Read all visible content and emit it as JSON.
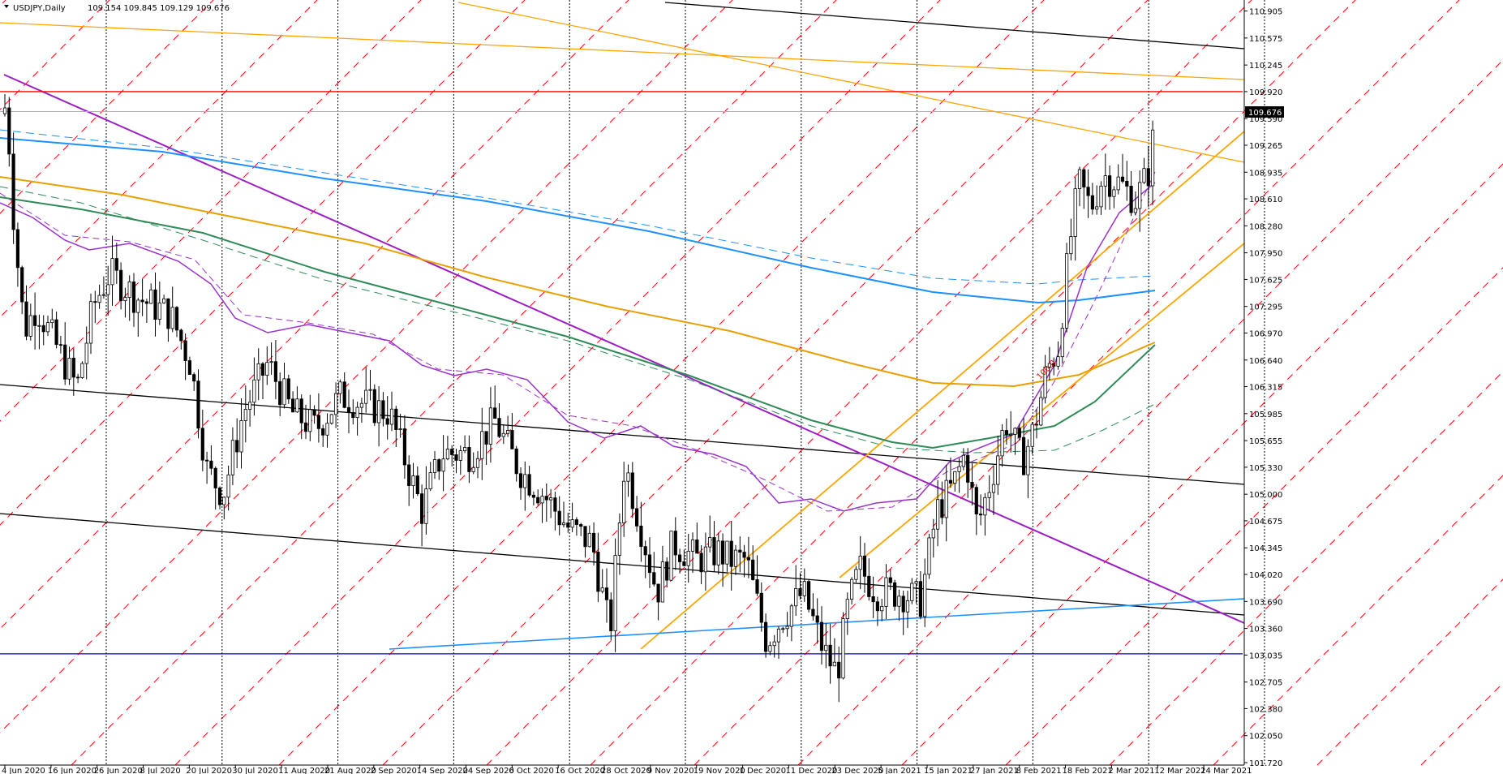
{
  "chart_data": {
    "type": "candlestick",
    "header": {
      "symbol_timeframe": "USDJPY,Daily",
      "ohlc_text": "109.154 109.845 109.129 109.676"
    },
    "price_axis": {
      "min": 101.72,
      "max": 110.99,
      "ticks": [
        "110.905",
        "110.575",
        "110.245",
        "109.920",
        "109.590",
        "109.265",
        "108.935",
        "108.610",
        "108.280",
        "107.950",
        "107.625",
        "107.295",
        "106.970",
        "106.640",
        "106.315",
        "105.985",
        "105.655",
        "105.330",
        "105.000",
        "104.675",
        "104.345",
        "104.020",
        "103.690",
        "103.360",
        "103.035",
        "102.705",
        "102.380",
        "102.050",
        "101.720"
      ],
      "current_price": "109.676"
    },
    "date_axis": {
      "labels": [
        "4 Jun 2020",
        "16 Jun 2020",
        "26 Jun 2020",
        "8 Jul 2020",
        "20 Jul 2020",
        "30 Jul 2020",
        "11 Aug 2020",
        "21 Aug 2020",
        "2 Sep 2020",
        "14 Sep 2020",
        "24 Sep 2020",
        "6 Oct 2020",
        "16 Oct 2020",
        "28 Oct 2020",
        "9 Nov 2020",
        "19 Nov 2020",
        "1 Dec 2020",
        "11 Dec 2020",
        "23 Dec 2020",
        "5 Jan 2021",
        "15 Jan 2021",
        "27 Jan 2021",
        "8 Feb 2021",
        "18 Feb 2021",
        "2 Mar 2021",
        "12 Mar 2021",
        "24 Mar 2021"
      ]
    },
    "horizontal_levels": [
      {
        "price": 109.92,
        "color": "#ff0000"
      },
      {
        "price": 103.05,
        "color": "#0000cc"
      }
    ],
    "annotation": {
      "text": "100.0",
      "color": "#ff0000"
    },
    "colors": {
      "bull_candle": "#ffffff",
      "bear_candle": "#000000",
      "grid_diagonal": "#ff0000",
      "trend_purple": "#9b1fc4",
      "channel_orange": "#ffa500",
      "channel_black": "#000000",
      "ma_blue": "#1e90ff",
      "ma_orange": "#e8a000",
      "ma_green": "#2e8b57",
      "ma_purple": "#9932cc"
    }
  }
}
